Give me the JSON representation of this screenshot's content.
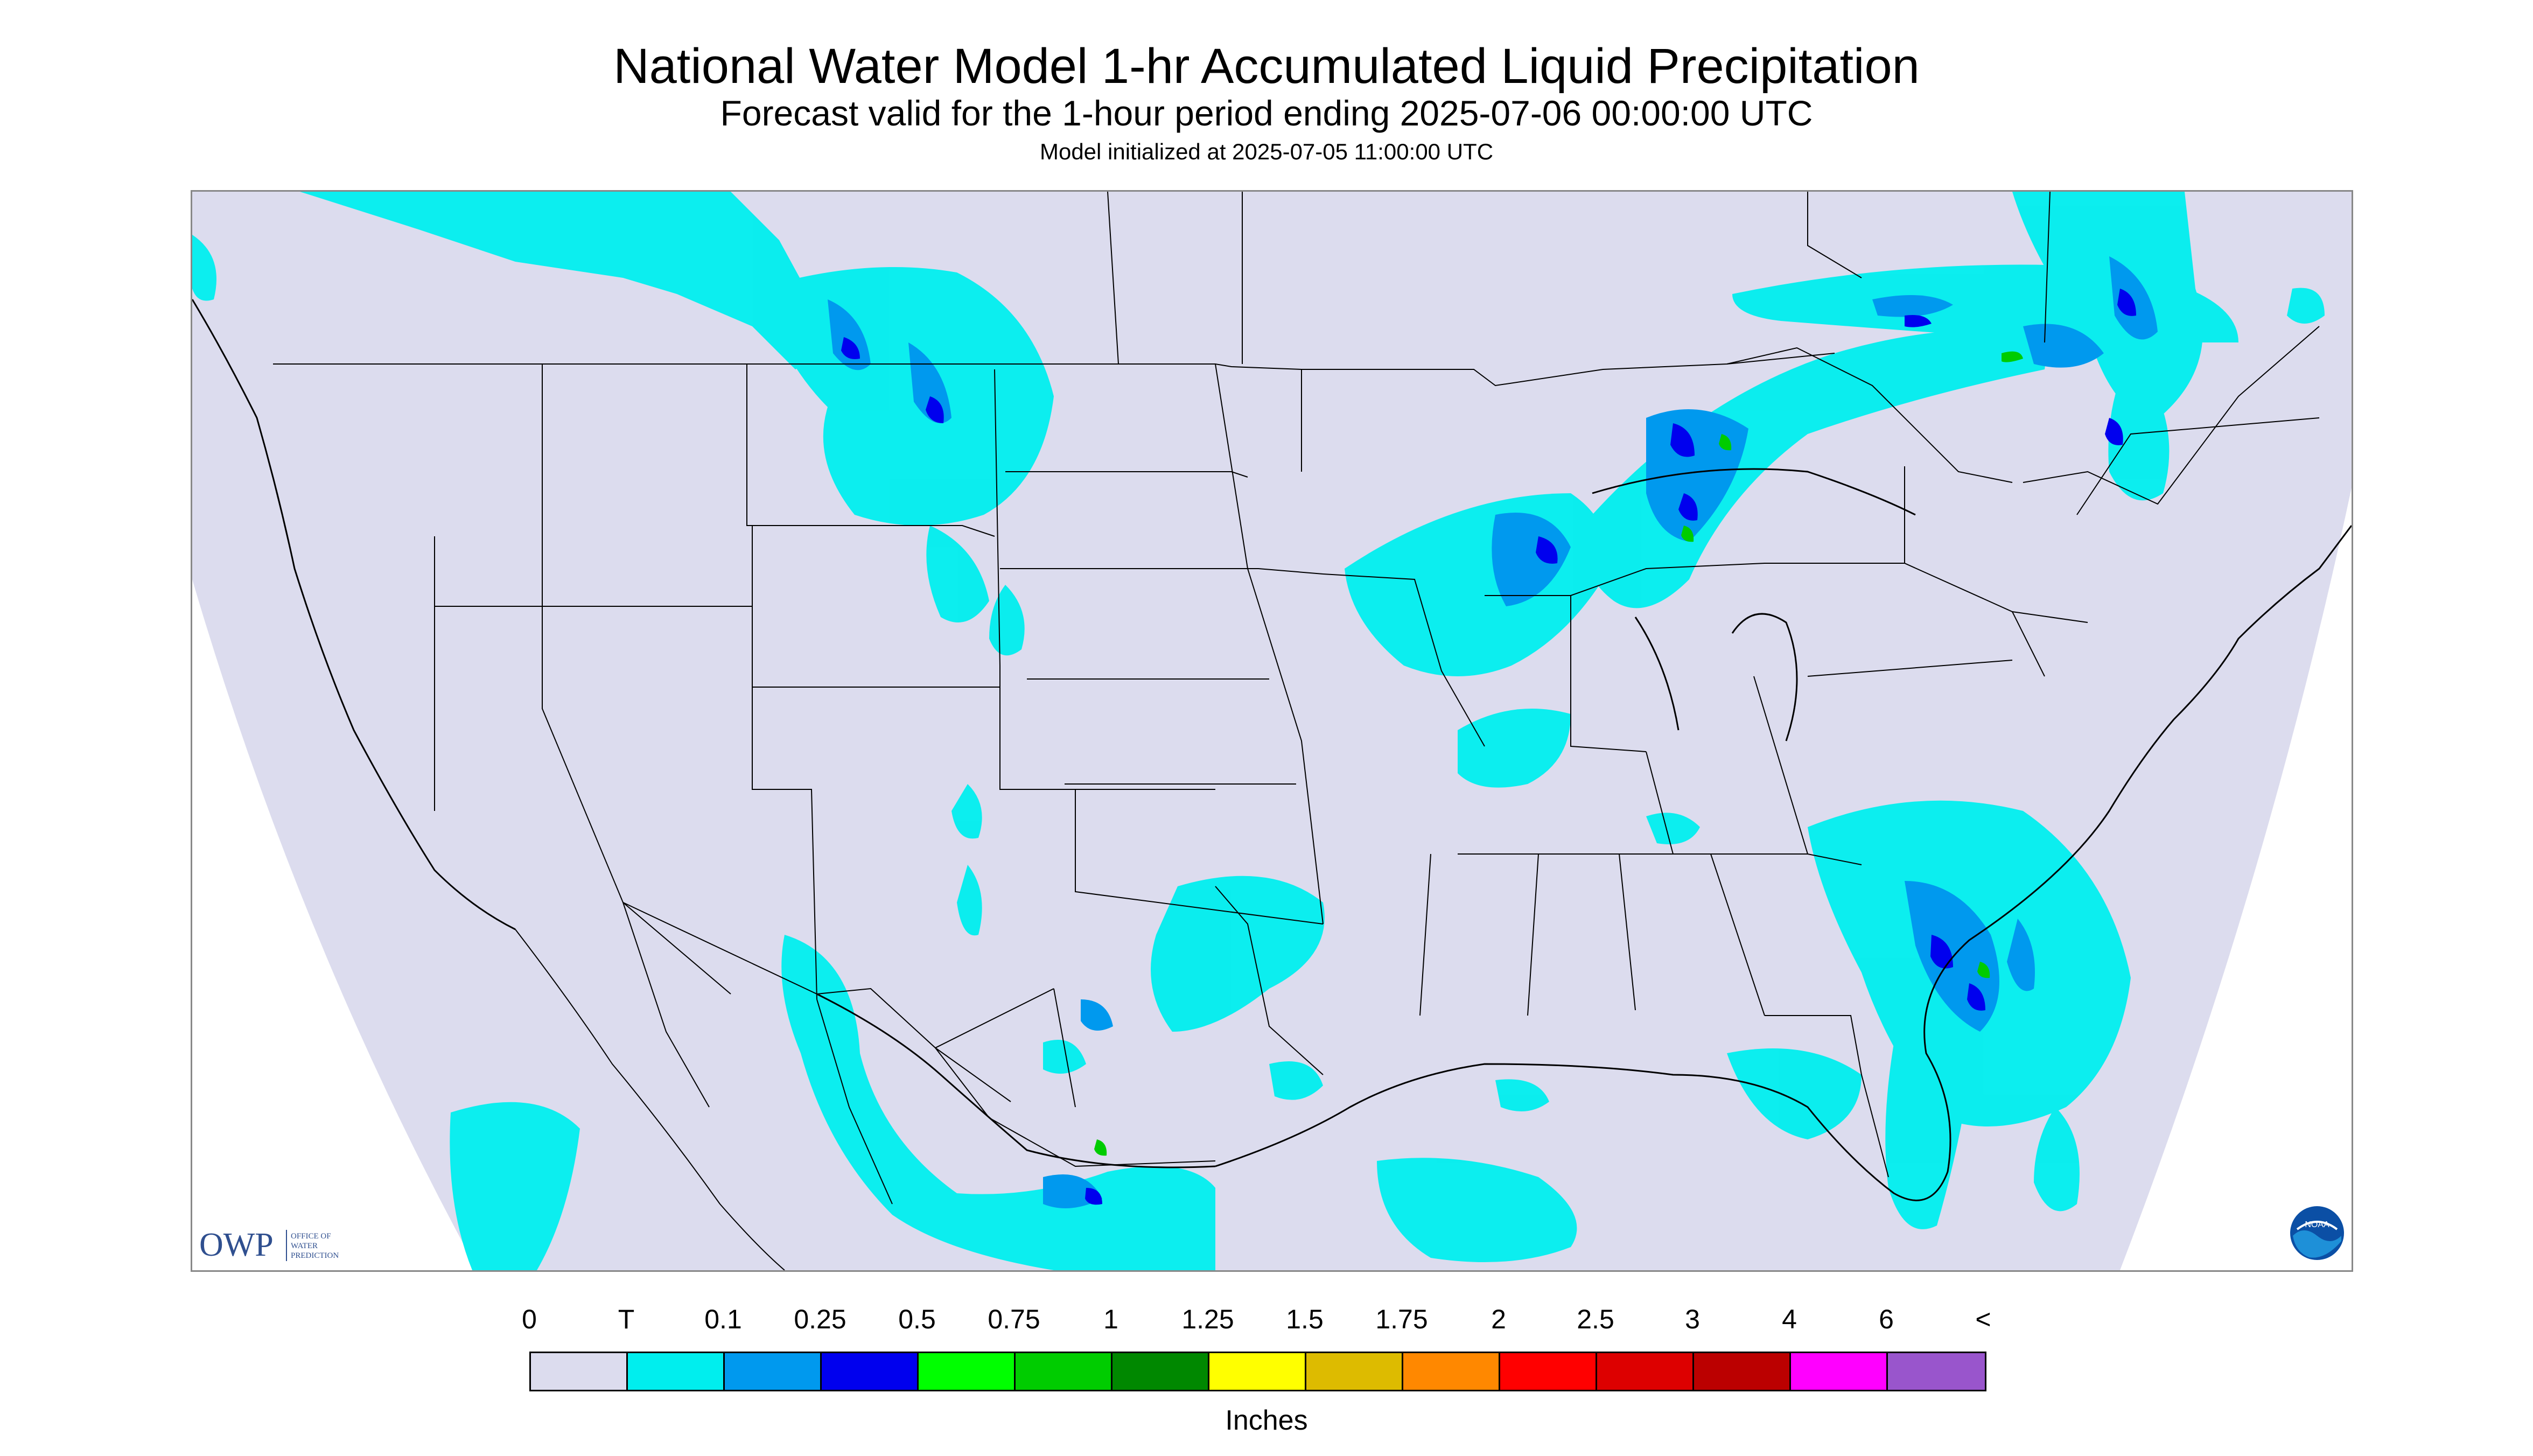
{
  "header": {
    "title": "National Water Model 1-hr Accumulated Liquid Precipitation",
    "subtitle": "Forecast valid for the 1-hour period ending 2025-07-06 00:00:00 UTC",
    "init": "Model initialized at 2025-07-05 11:00:00 UTC"
  },
  "logos": {
    "owp_text": "OWP",
    "owp_line1": "OFFICE OF",
    "owp_line2": "WATER",
    "owp_line3": "PREDICTION",
    "noaa_text": "NOAA"
  },
  "legend": {
    "labels": [
      "0",
      "T",
      "0.1",
      "0.25",
      "0.5",
      "0.75",
      "1",
      "1.25",
      "1.5",
      "1.75",
      "2",
      "2.5",
      "3",
      "4",
      "6",
      "<"
    ],
    "colors": [
      "#dcdcee",
      "#00eeee",
      "#0099ee",
      "#0000ee",
      "#00ff00",
      "#00cc00",
      "#008800",
      "#ffff00",
      "#ddbb00",
      "#ff8800",
      "#ff0000",
      "#dd0000",
      "#bb0000",
      "#ff00ff",
      "#9955cc"
    ],
    "units": "Inches"
  },
  "colors": {
    "map_background": "#dcdcee",
    "outside": "#ffffff",
    "trace": "#00eeee",
    "light": "#0099ee",
    "moderate": "#0000ee",
    "heavy": "#00cc00",
    "borders": "#000000"
  }
}
